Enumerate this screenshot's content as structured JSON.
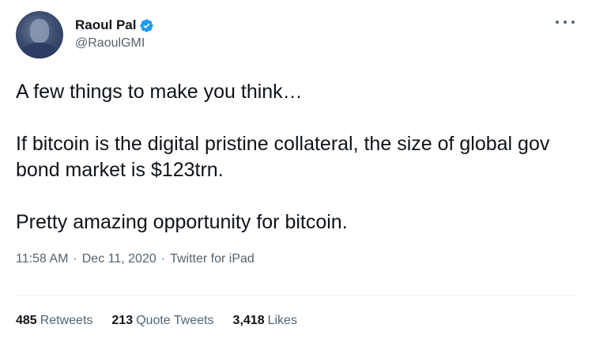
{
  "author": {
    "display_name": "Raoul Pal",
    "handle": "@RaoulGMI",
    "verified": true,
    "verified_color": "#1d9bf0"
  },
  "tweet": {
    "paragraphs": [
      "A few things to make you think…",
      "If bitcoin is the digital pristine collateral, the size of global gov bond market is $123trn.",
      "Pretty amazing opportunity for bitcoin."
    ]
  },
  "meta": {
    "time": "11:58 AM",
    "date": "Dec 11, 2020",
    "source": "Twitter for iPad",
    "separator": "·"
  },
  "stats": {
    "retweets": {
      "count": "485",
      "label": "Retweets"
    },
    "quote_tweets": {
      "count": "213",
      "label": "Quote Tweets"
    },
    "likes": {
      "count": "3,418",
      "label": "Likes"
    }
  },
  "icons": {
    "more": "more-options-icon",
    "verified": "verified-badge-icon"
  }
}
